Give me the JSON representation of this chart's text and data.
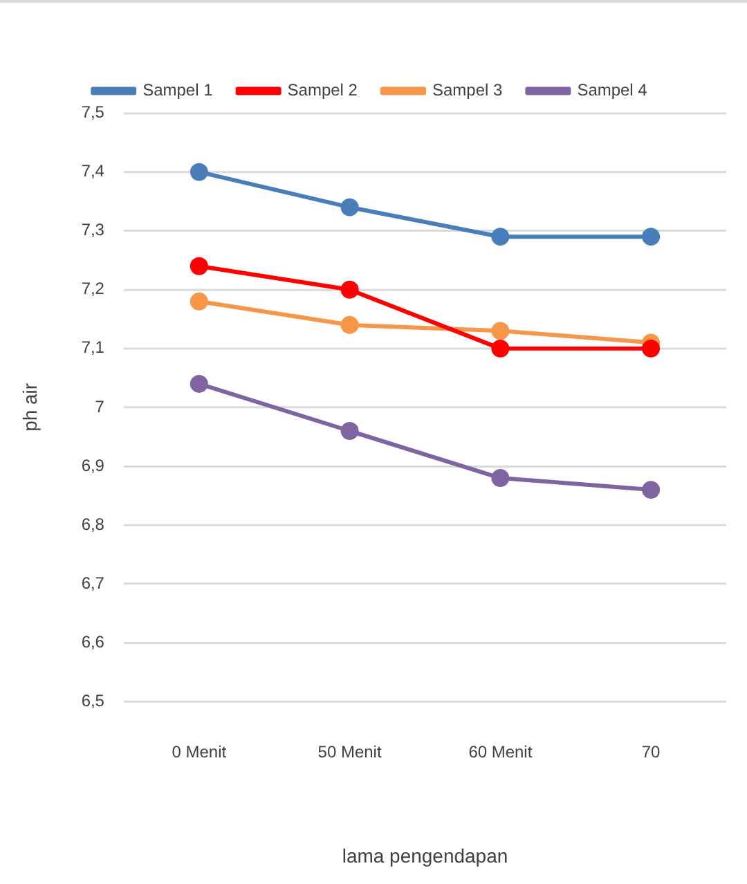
{
  "chart_data": {
    "type": "line",
    "xlabel": "lama pengendapan",
    "ylabel": "ph air",
    "categories": [
      "0 Menit",
      "50 Menit",
      "60 Menit",
      "70"
    ],
    "series": [
      {
        "name": "Sampel 1",
        "color": "#4a7ebb",
        "values": [
          7.4,
          7.34,
          7.29,
          7.29
        ]
      },
      {
        "name": "Sampel 2",
        "color": "#ff0000",
        "values": [
          7.24,
          7.2,
          7.1,
          7.1
        ]
      },
      {
        "name": "Sampel 3",
        "color": "#f79646",
        "values": [
          7.18,
          7.14,
          7.13,
          7.11
        ]
      },
      {
        "name": "Sampel 4",
        "color": "#8064a2",
        "values": [
          7.04,
          6.96,
          6.88,
          6.86
        ]
      }
    ],
    "ylim": [
      6.5,
      7.5
    ],
    "yticks": [
      {
        "value": 6.5,
        "label": "6,5"
      },
      {
        "value": 6.6,
        "label": "6,6"
      },
      {
        "value": 6.7,
        "label": "6,7"
      },
      {
        "value": 6.8,
        "label": "6,8"
      },
      {
        "value": 6.9,
        "label": "6,9"
      },
      {
        "value": 7,
        "label": "7"
      },
      {
        "value": 7.1,
        "label": "7,1"
      },
      {
        "value": 7.2,
        "label": "7,2"
      },
      {
        "value": 7.3,
        "label": "7,3"
      },
      {
        "value": 7.4,
        "label": "7,4"
      },
      {
        "value": 7.5,
        "label": "7,5"
      }
    ],
    "grid": "y",
    "legend": "top",
    "marker": "circle",
    "line_style": "solid"
  }
}
